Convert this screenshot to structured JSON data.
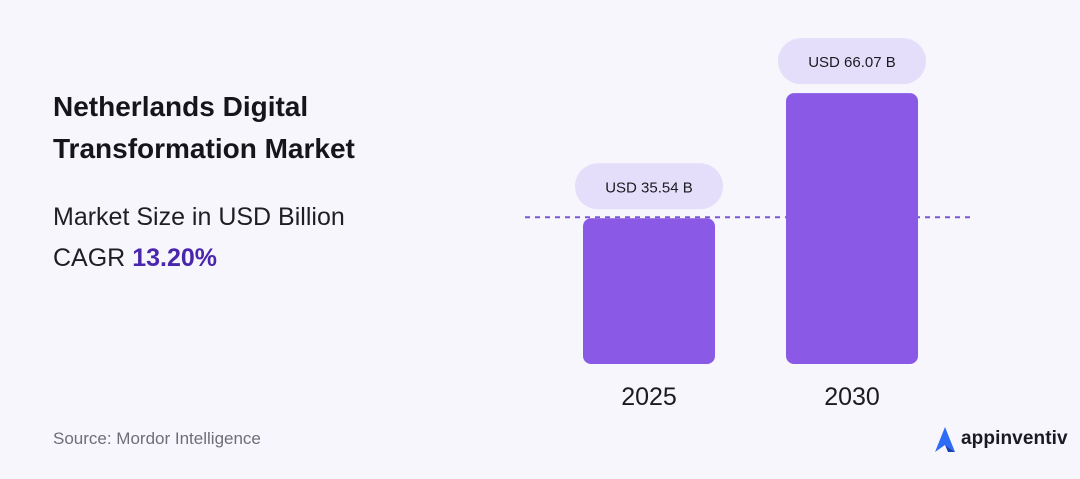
{
  "chart_data": {
    "type": "bar",
    "title": "Netherlands Digital Transformation Market",
    "subtitle_text": "Market Size in USD Billion CAGR ",
    "cagr": "13.20%",
    "categories": [
      "2025",
      "2030"
    ],
    "values": [
      35.54,
      66.07
    ],
    "value_labels": [
      "USD 35.54 B",
      "USD 66.07 B"
    ],
    "ylim": [
      0,
      70
    ],
    "xlabel": "",
    "ylabel": "",
    "grid": false,
    "bar_color": "#8a59e5",
    "label_bg_color": "#e5defa",
    "reference_line": "dashed line at first bar value"
  },
  "source": "Source: Mordor Intelligence",
  "brand": {
    "name": "appinventiv",
    "logo_icon": "appinventiv-logo-icon",
    "logo_color": "#2f6cf6"
  }
}
